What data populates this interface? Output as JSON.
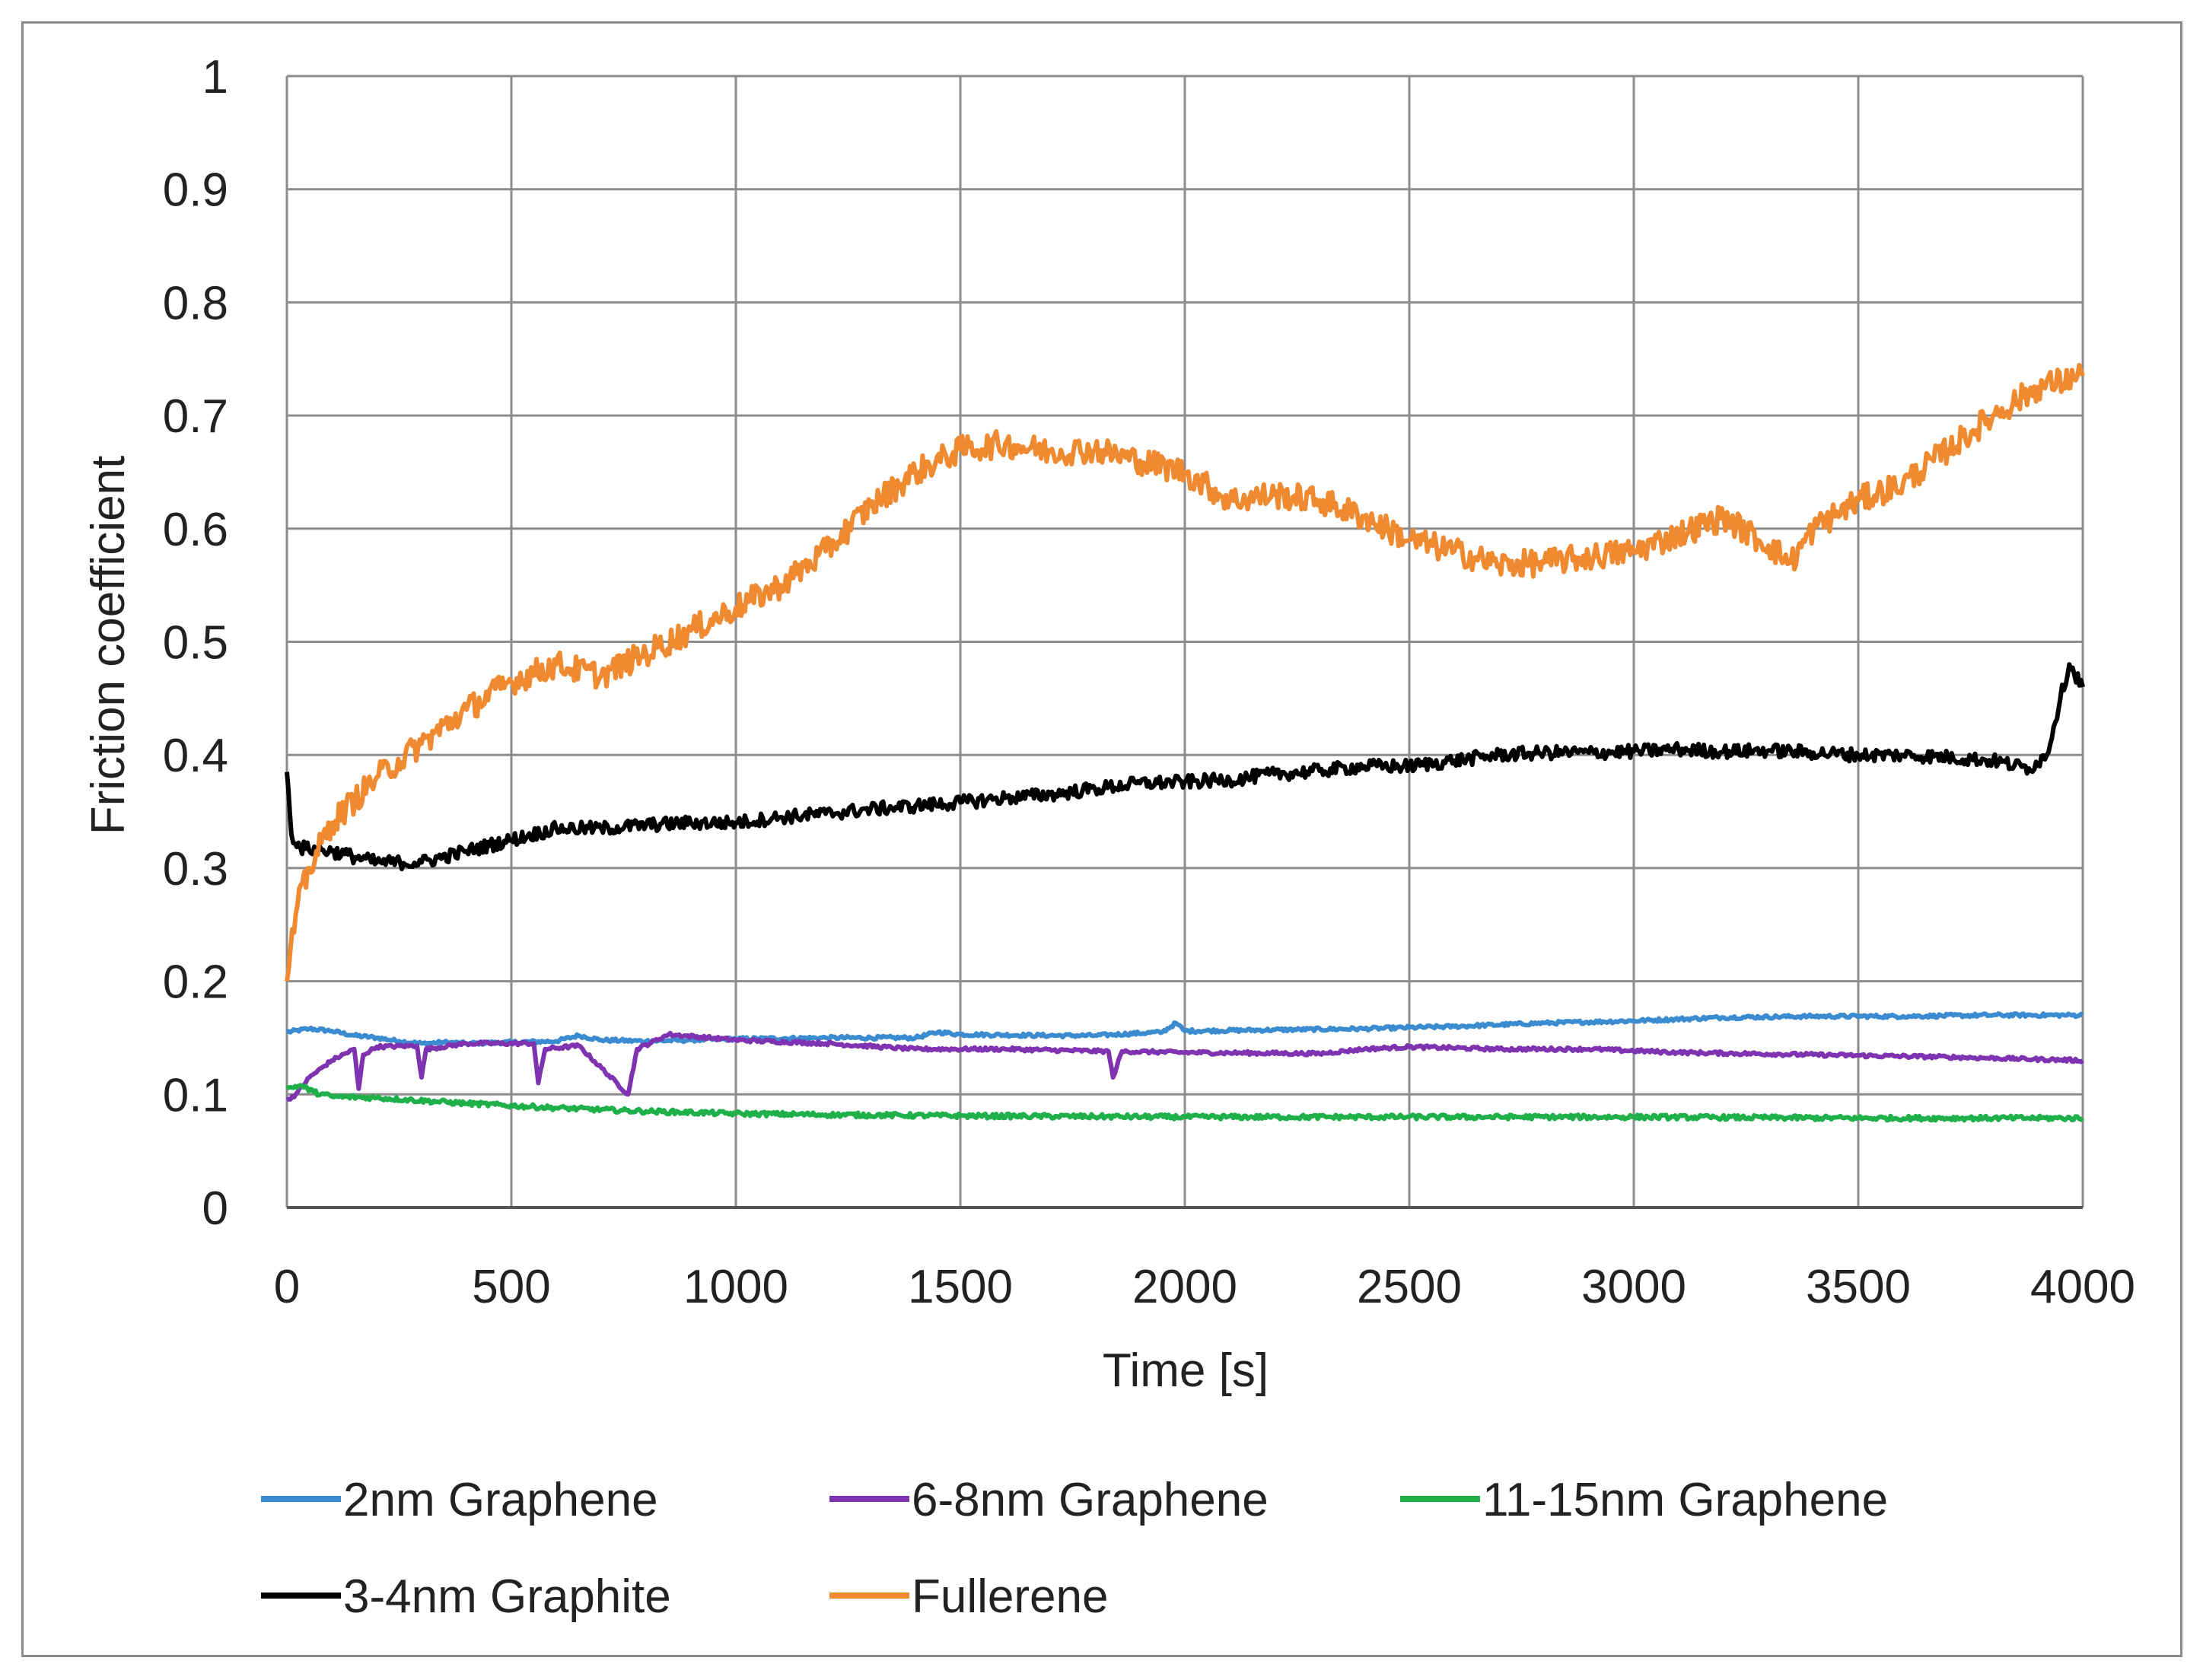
{
  "chart_data": {
    "type": "line",
    "xlabel": "Time [s]",
    "ylabel": "Friction coefficient",
    "xlim": [
      0,
      4000
    ],
    "ylim": [
      0,
      1
    ],
    "x_ticks": [
      "0",
      "500",
      "1000",
      "1500",
      "2000",
      "2500",
      "3000",
      "3500",
      "4000"
    ],
    "y_ticks": [
      "0",
      "0.1",
      "0.2",
      "0.3",
      "0.4",
      "0.5",
      "0.6",
      "0.7",
      "0.8",
      "0.9",
      "1"
    ],
    "grid": true,
    "legend_position": "bottom",
    "series": [
      {
        "name": "2nm Graphene",
        "color": "#3b8bd0",
        "points": [
          [
            0,
            0.155
          ],
          [
            50,
            0.158
          ],
          [
            100,
            0.156
          ],
          [
            150,
            0.152
          ],
          [
            200,
            0.15
          ],
          [
            250,
            0.147
          ],
          [
            300,
            0.145
          ],
          [
            350,
            0.146
          ],
          [
            400,
            0.145
          ],
          [
            500,
            0.146
          ],
          [
            600,
            0.147
          ],
          [
            650,
            0.152
          ],
          [
            700,
            0.148
          ],
          [
            800,
            0.147
          ],
          [
            900,
            0.148
          ],
          [
            1000,
            0.149
          ],
          [
            1200,
            0.15
          ],
          [
            1400,
            0.15
          ],
          [
            1450,
            0.155
          ],
          [
            1500,
            0.153
          ],
          [
            1700,
            0.152
          ],
          [
            1800,
            0.152
          ],
          [
            1950,
            0.155
          ],
          [
            1980,
            0.163
          ],
          [
            2000,
            0.156
          ],
          [
            2200,
            0.157
          ],
          [
            2400,
            0.158
          ],
          [
            2600,
            0.16
          ],
          [
            2800,
            0.163
          ],
          [
            3000,
            0.165
          ],
          [
            3200,
            0.168
          ],
          [
            3400,
            0.169
          ],
          [
            3600,
            0.169
          ],
          [
            3800,
            0.17
          ],
          [
            4000,
            0.17
          ]
        ]
      },
      {
        "name": "6-8nm Graphene",
        "color": "#8033b0",
        "points": [
          [
            0,
            0.095
          ],
          [
            20,
            0.1
          ],
          [
            50,
            0.115
          ],
          [
            100,
            0.13
          ],
          [
            150,
            0.14
          ],
          [
            160,
            0.105
          ],
          [
            170,
            0.135
          ],
          [
            200,
            0.142
          ],
          [
            290,
            0.143
          ],
          [
            300,
            0.115
          ],
          [
            310,
            0.14
          ],
          [
            400,
            0.145
          ],
          [
            550,
            0.145
          ],
          [
            560,
            0.11
          ],
          [
            575,
            0.14
          ],
          [
            650,
            0.143
          ],
          [
            760,
            0.1
          ],
          [
            780,
            0.14
          ],
          [
            850,
            0.153
          ],
          [
            1000,
            0.148
          ],
          [
            1200,
            0.145
          ],
          [
            1400,
            0.14
          ],
          [
            1600,
            0.14
          ],
          [
            1830,
            0.138
          ],
          [
            1840,
            0.115
          ],
          [
            1860,
            0.138
          ],
          [
            2000,
            0.137
          ],
          [
            2300,
            0.136
          ],
          [
            2400,
            0.14
          ],
          [
            2500,
            0.142
          ],
          [
            2700,
            0.14
          ],
          [
            2900,
            0.14
          ],
          [
            3100,
            0.137
          ],
          [
            3400,
            0.135
          ],
          [
            3700,
            0.133
          ],
          [
            4000,
            0.13
          ]
        ]
      },
      {
        "name": "11-15nm Graphene",
        "color": "#1fb04a",
        "points": [
          [
            0,
            0.105
          ],
          [
            30,
            0.108
          ],
          [
            60,
            0.102
          ],
          [
            100,
            0.098
          ],
          [
            200,
            0.097
          ],
          [
            400,
            0.092
          ],
          [
            600,
            0.088
          ],
          [
            800,
            0.085
          ],
          [
            1000,
            0.083
          ],
          [
            1200,
            0.082
          ],
          [
            1500,
            0.081
          ],
          [
            2000,
            0.08
          ],
          [
            2500,
            0.08
          ],
          [
            3000,
            0.08
          ],
          [
            3500,
            0.079
          ],
          [
            4000,
            0.079
          ]
        ]
      },
      {
        "name": "3-4nm Graphite",
        "color": "#000000",
        "points": [
          [
            0,
            0.385
          ],
          [
            10,
            0.33
          ],
          [
            30,
            0.318
          ],
          [
            100,
            0.315
          ],
          [
            200,
            0.305
          ],
          [
            300,
            0.305
          ],
          [
            400,
            0.315
          ],
          [
            500,
            0.325
          ],
          [
            600,
            0.335
          ],
          [
            700,
            0.335
          ],
          [
            800,
            0.338
          ],
          [
            900,
            0.34
          ],
          [
            1000,
            0.34
          ],
          [
            1100,
            0.345
          ],
          [
            1200,
            0.348
          ],
          [
            1300,
            0.352
          ],
          [
            1400,
            0.355
          ],
          [
            1500,
            0.358
          ],
          [
            1600,
            0.362
          ],
          [
            1700,
            0.365
          ],
          [
            1800,
            0.37
          ],
          [
            1900,
            0.375
          ],
          [
            2000,
            0.376
          ],
          [
            2100,
            0.378
          ],
          [
            2200,
            0.383
          ],
          [
            2300,
            0.386
          ],
          [
            2400,
            0.39
          ],
          [
            2500,
            0.39
          ],
          [
            2600,
            0.395
          ],
          [
            2700,
            0.4
          ],
          [
            2800,
            0.402
          ],
          [
            2900,
            0.402
          ],
          [
            3000,
            0.403
          ],
          [
            3100,
            0.405
          ],
          [
            3200,
            0.403
          ],
          [
            3300,
            0.404
          ],
          [
            3400,
            0.402
          ],
          [
            3500,
            0.4
          ],
          [
            3600,
            0.4
          ],
          [
            3700,
            0.398
          ],
          [
            3800,
            0.395
          ],
          [
            3880,
            0.388
          ],
          [
            3920,
            0.4
          ],
          [
            3950,
            0.45
          ],
          [
            3970,
            0.48
          ],
          [
            4000,
            0.46
          ]
        ]
      },
      {
        "name": "Fullerene",
        "color": "#f08a30",
        "points": [
          [
            0,
            0.2
          ],
          [
            20,
            0.26
          ],
          [
            50,
            0.3
          ],
          [
            100,
            0.34
          ],
          [
            200,
            0.38
          ],
          [
            300,
            0.41
          ],
          [
            400,
            0.44
          ],
          [
            500,
            0.465
          ],
          [
            600,
            0.48
          ],
          [
            700,
            0.47
          ],
          [
            800,
            0.49
          ],
          [
            900,
            0.51
          ],
          [
            1000,
            0.53
          ],
          [
            1100,
            0.55
          ],
          [
            1200,
            0.58
          ],
          [
            1300,
            0.62
          ],
          [
            1400,
            0.65
          ],
          [
            1500,
            0.67
          ],
          [
            1600,
            0.675
          ],
          [
            1700,
            0.668
          ],
          [
            1800,
            0.67
          ],
          [
            1900,
            0.66
          ],
          [
            2000,
            0.65
          ],
          [
            2100,
            0.625
          ],
          [
            2200,
            0.63
          ],
          [
            2300,
            0.625
          ],
          [
            2400,
            0.61
          ],
          [
            2500,
            0.59
          ],
          [
            2600,
            0.58
          ],
          [
            2700,
            0.568
          ],
          [
            2800,
            0.57
          ],
          [
            2900,
            0.575
          ],
          [
            3000,
            0.58
          ],
          [
            3100,
            0.595
          ],
          [
            3200,
            0.61
          ],
          [
            3300,
            0.585
          ],
          [
            3350,
            0.57
          ],
          [
            3400,
            0.6
          ],
          [
            3500,
            0.625
          ],
          [
            3600,
            0.64
          ],
          [
            3700,
            0.67
          ],
          [
            3800,
            0.7
          ],
          [
            3900,
            0.725
          ],
          [
            4000,
            0.735
          ]
        ]
      }
    ]
  }
}
